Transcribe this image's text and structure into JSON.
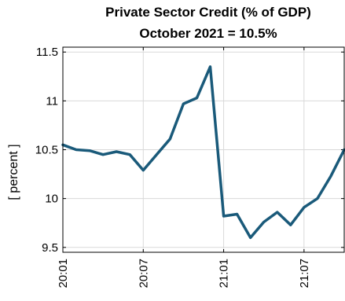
{
  "chart_data": {
    "type": "line",
    "title": "Private Sector Credit (% of GDP)",
    "subtitle": "October 2021 = 10.5%",
    "ylabel": "[ percent ]",
    "xlabel": "",
    "ylim": [
      9.45,
      11.55
    ],
    "yticks": [
      9.5,
      10,
      10.5,
      11,
      11.5
    ],
    "ytick_labels": [
      "9.5",
      "10",
      "10.5",
      "11",
      "11.5"
    ],
    "xtick_labels": [
      "20:01",
      "20:07",
      "21:01",
      "21:07"
    ],
    "xtick_positions": [
      1,
      7,
      13,
      19
    ],
    "xlim": [
      1,
      22
    ],
    "grid": true,
    "legend": "none",
    "series": [
      {
        "color": "#1a5a7a",
        "x": [
          1,
          2,
          3,
          4,
          5,
          6,
          7,
          8,
          9,
          10,
          11,
          12,
          13,
          14,
          15,
          16,
          17,
          18,
          19,
          20,
          21,
          22
        ],
        "values": [
          10.55,
          10.5,
          10.49,
          10.45,
          10.48,
          10.45,
          10.29,
          10.45,
          10.61,
          10.97,
          11.03,
          11.35,
          9.82,
          9.84,
          9.6,
          9.76,
          9.86,
          9.73,
          9.91,
          10.0,
          10.23,
          10.5
        ]
      }
    ]
  }
}
